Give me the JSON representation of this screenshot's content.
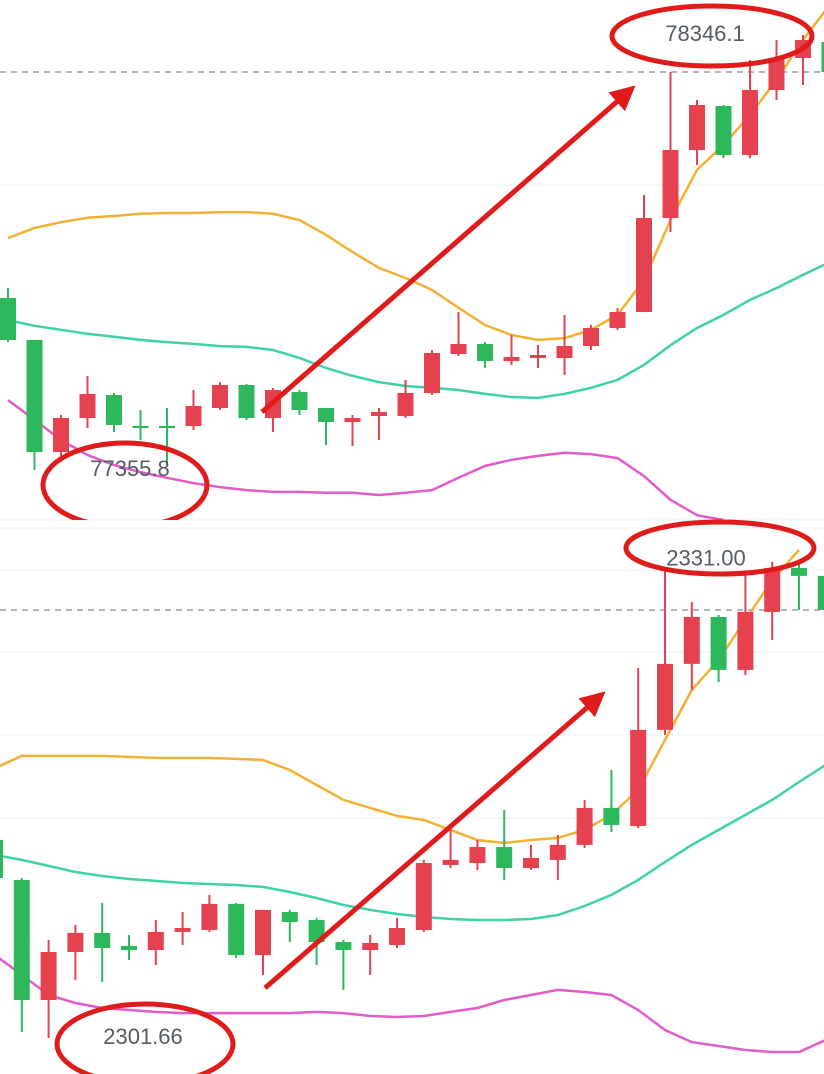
{
  "chart_data": [
    {
      "type": "candlestick",
      "ylim": [
        77242.0,
        78425.8
      ],
      "up_color": "#e5414f",
      "down_color": "#2eb85c",
      "high_label": 78346.1,
      "low_label": 77355.8,
      "last_price": 78261.9,
      "open": [
        77747.4,
        77651.8,
        77396.8,
        77474.2,
        77526.5,
        77456.0,
        77456.0,
        77456.0,
        77496.9,
        77549.3,
        77474.2,
        77533.4,
        77496.9,
        77465.1,
        77478.7,
        77478.7,
        77531.1,
        77619.9,
        77642.7,
        77604.0,
        77610.8,
        77610.8,
        77638.1,
        77679.1,
        77715.5,
        77929.5,
        78084.3,
        78184.5,
        78072.9,
        78220.9,
        78293.8,
        78330.2
      ],
      "high": [
        77770.1,
        77651.8,
        77481.0,
        77569.8,
        77531.1,
        77492.4,
        77496.9,
        77537.9,
        77556.1,
        77551.6,
        77542.5,
        77537.9,
        77496.9,
        77481.0,
        77496.9,
        77560.7,
        77629.0,
        77715.5,
        77647.2,
        77663.1,
        77640.4,
        77708.7,
        77685.9,
        77724.6,
        77981.9,
        78261.9,
        78198.1,
        78186.8,
        78289.2,
        78334.7,
        78346.1,
        78334.7
      ],
      "low": [
        77647.2,
        77355.8,
        77374.0,
        77451.4,
        77442.3,
        77424.1,
        77367.2,
        77446.9,
        77492.4,
        77469.6,
        77442.3,
        77481.0,
        77412.7,
        77410.4,
        77424.1,
        77474.2,
        77526.5,
        77615.4,
        77588.0,
        77594.9,
        77588.0,
        77572.1,
        77629.0,
        77674.5,
        77715.5,
        77897.6,
        78050.2,
        78066.1,
        78066.1,
        78198.1,
        78232.3,
        78261.9
      ],
      "close": [
        77651.8,
        77396.8,
        77474.2,
        77528.8,
        77458.3,
        77451.4,
        77451.4,
        77501.5,
        77549.3,
        77474.2,
        77537.9,
        77492.4,
        77465.1,
        77474.2,
        77487.8,
        77531.1,
        77622.2,
        77642.7,
        77604.0,
        77613.1,
        77617.6,
        77638.1,
        77679.1,
        77715.5,
        77929.5,
        78084.3,
        78186.8,
        78072.9,
        78220.9,
        78293.8,
        78334.7,
        78261.9
      ],
      "lines": [
        {
          "color": "#f2b134",
          "values": [
            77884,
            77907,
            77920,
            77930,
            77934,
            77939,
            77941,
            77941,
            77943,
            77943,
            77939,
            77925,
            77891,
            77852,
            77816,
            77793,
            77766,
            77725,
            77686,
            77663,
            77652,
            77656,
            77675,
            77709,
            77788,
            77925,
            78039,
            78096,
            78164,
            78244,
            78335,
            78414
          ]
        },
        {
          "color": "#3fd1a8",
          "values": [
            77697,
            77684,
            77675,
            77666,
            77659,
            77652,
            77647,
            77643,
            77638,
            77636,
            77629,
            77611,
            77588,
            77570,
            77556,
            77547,
            77543,
            77538,
            77529,
            77522,
            77520,
            77529,
            77543,
            77561,
            77595,
            77640,
            77679,
            77709,
            77743,
            77770,
            77800,
            77829
          ]
        },
        {
          "color": "#e35bc8",
          "values": [
            77515,
            77470,
            77424,
            77390,
            77367,
            77351,
            77338,
            77326,
            77317,
            77310,
            77306,
            77306,
            77304,
            77304,
            77299,
            77304,
            77310,
            77338,
            77365,
            77379,
            77388,
            77395,
            77392,
            77383,
            77342,
            77288,
            77253,
            77242,
            null,
            null,
            null,
            null
          ]
        }
      ]
    },
    {
      "type": "candlestick",
      "ylim": [
        2299.45,
        2332.96
      ],
      "up_color": "#e5414f",
      "down_color": "#2eb85c",
      "high_label": {
        "value": 2331,
        "label": "2331.00"
      },
      "low_label": 2301.66,
      "last_price": 2327.93,
      "open": [
        2313.81,
        2311.36,
        2303.99,
        2306.94,
        2308.11,
        2307.31,
        2307.06,
        2308.17,
        2308.29,
        2309.89,
        2306.75,
        2309.39,
        2308.9,
        2307.55,
        2307.06,
        2307.37,
        2308.29,
        2312.28,
        2312.4,
        2313.38,
        2312.09,
        2312.59,
        2313.51,
        2315.78,
        2314.67,
        2320.57,
        2324.62,
        2327.5,
        2324.25,
        2327.81,
        2330.51,
        2330.02
      ],
      "high": [
        2314.12,
        2311.48,
        2307.68,
        2308.6,
        2309.95,
        2307.98,
        2308.9,
        2309.39,
        2310.44,
        2309.95,
        2309.52,
        2309.52,
        2309.03,
        2307.68,
        2307.98,
        2309.03,
        2312.59,
        2314.73,
        2313.81,
        2315.65,
        2313.51,
        2314.12,
        2316.27,
        2318.11,
        2324.37,
        2330.51,
        2328.42,
        2327.62,
        2330.08,
        2330.88,
        2331.0,
        2330.08
      ],
      "low": [
        2311.36,
        2302.03,
        2301.66,
        2305.22,
        2305.1,
        2306.45,
        2306.14,
        2307.37,
        2308.17,
        2306.57,
        2305.53,
        2307.55,
        2306.14,
        2304.61,
        2305.53,
        2307.18,
        2308.17,
        2312.09,
        2311.97,
        2311.36,
        2311.97,
        2311.36,
        2313.32,
        2314.3,
        2314.55,
        2320.26,
        2323.02,
        2323.51,
        2323.94,
        2326.09,
        2327.93,
        2327.93
      ],
      "close": [
        2311.48,
        2303.99,
        2306.94,
        2308.11,
        2307.18,
        2307.06,
        2308.17,
        2308.41,
        2309.89,
        2306.75,
        2309.52,
        2308.78,
        2307.55,
        2307.06,
        2307.49,
        2308.41,
        2312.4,
        2312.59,
        2313.38,
        2312.09,
        2312.71,
        2313.51,
        2315.78,
        2314.73,
        2320.57,
        2324.62,
        2327.5,
        2324.25,
        2327.81,
        2330.51,
        2330.02,
        2327.93
      ],
      "lines": [
        {
          "color": "#f2b134",
          "values": [
            2318.23,
            2318.97,
            2318.97,
            2318.97,
            2318.97,
            2318.91,
            2318.85,
            2318.85,
            2318.85,
            2318.79,
            2318.72,
            2318.11,
            2317.19,
            2316.27,
            2315.78,
            2315.29,
            2315.04,
            2314.43,
            2313.81,
            2313.63,
            2313.81,
            2313.94,
            2314.43,
            2315.35,
            2316.88,
            2319.95,
            2323.02,
            2324.86,
            2327.32,
            2329.77,
            2331.61,
            null
          ]
        },
        {
          "color": "#3fd1a8",
          "values": [
            2312.89,
            2312.59,
            2312.22,
            2311.85,
            2311.6,
            2311.42,
            2311.3,
            2311.17,
            2311.11,
            2311.05,
            2310.93,
            2310.62,
            2310.25,
            2309.82,
            2309.52,
            2309.27,
            2309.09,
            2308.96,
            2308.9,
            2308.9,
            2308.96,
            2309.21,
            2309.76,
            2310.44,
            2311.36,
            2312.46,
            2313.51,
            2314.43,
            2315.35,
            2316.27,
            2317.37,
            2318.42
          ]
        },
        {
          "color": "#e35bc8",
          "values": [
            2306.75,
            2305.53,
            2304.3,
            2303.81,
            2303.5,
            2303.38,
            2303.26,
            2303.19,
            2303.19,
            2303.19,
            2303.19,
            2303.19,
            2303.26,
            2303.19,
            2303.01,
            2302.95,
            2303.01,
            2303.26,
            2303.5,
            2303.99,
            2304.3,
            2304.61,
            2304.48,
            2304.3,
            2303.38,
            2302.15,
            2301.41,
            2301.17,
            2300.92,
            2300.8,
            2300.8,
            2301.54
          ]
        }
      ]
    }
  ]
}
